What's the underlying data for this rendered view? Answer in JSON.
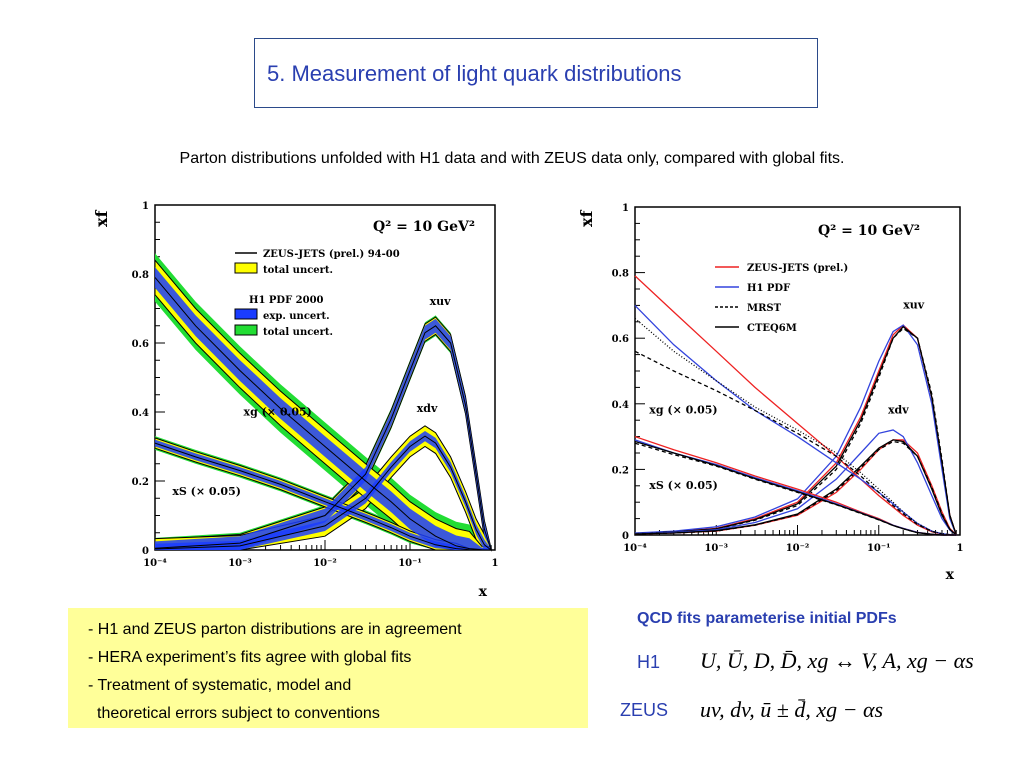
{
  "slide": {
    "title": "5. Measurement of light quark distributions",
    "subtitle": "Parton distributions unfolded with H1 data and with ZEUS data only, compared with global fits."
  },
  "notes": [
    "- H1 and ZEUS parton distributions are in agreement",
    "- HERA experiment’s fits agree with global fits",
    "- Treatment of systematic, model and",
    "  theoretical errors subject to conventions"
  ],
  "qcd": {
    "heading": "QCD fits parameterise initial PDFs",
    "h1_label": "H1",
    "h1_params": "U, Ū, D, D̄, xg ↔ V, A, xg − αs",
    "zeus_label": "ZEUS",
    "zeus_params": "uv, dv, ū ± d̄, xg − αs"
  },
  "chart_data": [
    {
      "type": "line",
      "title": "Q² = 10 GeV²",
      "xlabel": "x",
      "ylabel": "xf",
      "xscale": "log",
      "xlim": [
        0.0001,
        1
      ],
      "ylim": [
        0,
        1
      ],
      "x_ticks": [
        "10⁻⁴",
        "10⁻³",
        "10⁻²",
        "10⁻¹",
        "1"
      ],
      "y_ticks": [
        "0",
        "0.2",
        "0.4",
        "0.6",
        "0.8",
        "1"
      ],
      "legend": {
        "placement": "top-left",
        "entries": [
          {
            "label": "ZEUS-JETS (prel.) 94-00",
            "style": "line",
            "color": "#000000"
          },
          {
            "label": "total uncert.",
            "style": "box",
            "color": "#ffff00"
          },
          {
            "label": "H1 PDF 2000",
            "style": "header",
            "color": "#000000"
          },
          {
            "label": "exp. uncert.",
            "style": "box",
            "color": "#1a3cff"
          },
          {
            "label": "total uncert.",
            "style": "box",
            "color": "#22dd33"
          }
        ]
      },
      "annotations": [
        {
          "text": "xuv",
          "x": 0.17,
          "y": 0.71
        },
        {
          "text": "xdv",
          "x": 0.12,
          "y": 0.4
        },
        {
          "text": "xg (× 0.05)",
          "x": 0.0011,
          "y": 0.39
        },
        {
          "text": "xS (× 0.05)",
          "x": 0.00016,
          "y": 0.16
        }
      ],
      "series": [
        {
          "name": "xuv",
          "x": [
            0.0001,
            0.001,
            0.01,
            0.03,
            0.06,
            0.1,
            0.15,
            0.2,
            0.3,
            0.45,
            0.6,
            0.75,
            0.9
          ],
          "y": [
            0.005,
            0.02,
            0.1,
            0.22,
            0.38,
            0.52,
            0.63,
            0.65,
            0.6,
            0.42,
            0.22,
            0.06,
            0.0
          ],
          "band_h1_exp": 0.02,
          "band_h1_tot": 0.03,
          "band_zeus": 0.025
        },
        {
          "name": "xdv",
          "x": [
            0.0001,
            0.001,
            0.01,
            0.03,
            0.06,
            0.1,
            0.15,
            0.2,
            0.3,
            0.45,
            0.6,
            0.75,
            0.9
          ],
          "y": [
            0.003,
            0.012,
            0.07,
            0.15,
            0.24,
            0.3,
            0.33,
            0.31,
            0.24,
            0.14,
            0.06,
            0.015,
            0.0
          ],
          "band_h1_exp": 0.015,
          "band_h1_tot": 0.025,
          "band_zeus": 0.03
        },
        {
          "name": "xg (× 0.05)",
          "x": [
            0.0001,
            0.0003,
            0.001,
            0.003,
            0.01,
            0.03,
            0.06,
            0.1,
            0.2,
            0.35,
            0.5,
            0.7,
            0.9
          ],
          "y": [
            0.79,
            0.65,
            0.52,
            0.41,
            0.3,
            0.2,
            0.14,
            0.09,
            0.04,
            0.012,
            0.004,
            0.001,
            0.0
          ],
          "band_h1_exp": 0.03,
          "band_h1_tot": 0.07,
          "band_zeus": 0.05
        },
        {
          "name": "xS (× 0.05)",
          "x": [
            0.0001,
            0.0003,
            0.001,
            0.003,
            0.01,
            0.03,
            0.06,
            0.1,
            0.2,
            0.35,
            0.5,
            0.7,
            0.9
          ],
          "y": [
            0.31,
            0.27,
            0.23,
            0.19,
            0.14,
            0.095,
            0.065,
            0.04,
            0.015,
            0.004,
            0.001,
            0.0,
            0.0
          ],
          "band_h1_exp": 0.01,
          "band_h1_tot": 0.02,
          "band_zeus": 0.015
        }
      ]
    },
    {
      "type": "line",
      "title": "Q² = 10 GeV²",
      "xlabel": "x",
      "ylabel": "xf",
      "xscale": "log",
      "xlim": [
        0.0001,
        1
      ],
      "ylim": [
        0,
        1
      ],
      "x_ticks": [
        "10⁻⁴",
        "10⁻³",
        "10⁻²",
        "10⁻¹",
        "1"
      ],
      "y_ticks": [
        "0",
        "0.2",
        "0.4",
        "0.6",
        "0.8",
        "1"
      ],
      "legend": {
        "placement": "top-left",
        "entries": [
          {
            "label": "ZEUS-JETS (prel.)",
            "style": "solid",
            "color": "#ee2222"
          },
          {
            "label": "H1 PDF",
            "style": "solid",
            "color": "#3344dd"
          },
          {
            "label": "MRST",
            "style": "dashed",
            "color": "#000000"
          },
          {
            "label": "CTEQ6M",
            "style": "solid",
            "color": "#000000"
          }
        ]
      },
      "annotations": [
        {
          "text": "xuv",
          "x": 0.2,
          "y": 0.69
        },
        {
          "text": "xdv",
          "x": 0.13,
          "y": 0.37
        },
        {
          "text": "xg (× 0.05)",
          "x": 0.00015,
          "y": 0.37
        },
        {
          "text": "xS (× 0.05)",
          "x": 0.00015,
          "y": 0.14
        }
      ],
      "x": [
        0.0001,
        0.0003,
        0.001,
        0.003,
        0.01,
        0.03,
        0.06,
        0.1,
        0.15,
        0.2,
        0.3,
        0.45,
        0.6,
        0.75,
        0.9
      ],
      "series": [
        {
          "name": "ZEUS-JETS xuv",
          "color": "#ee2222",
          "dash": "",
          "y": [
            0.005,
            0.01,
            0.02,
            0.05,
            0.1,
            0.22,
            0.36,
            0.5,
            0.61,
            0.64,
            0.6,
            0.42,
            0.22,
            0.06,
            0.0
          ]
        },
        {
          "name": "H1 xuv",
          "color": "#3344dd",
          "dash": "",
          "y": [
            0.006,
            0.012,
            0.025,
            0.055,
            0.11,
            0.24,
            0.39,
            0.53,
            0.62,
            0.64,
            0.58,
            0.4,
            0.2,
            0.05,
            0.0
          ]
        },
        {
          "name": "MRST xuv",
          "color": "#000000",
          "dash": "4,3",
          "y": [
            0.004,
            0.009,
            0.018,
            0.045,
            0.09,
            0.2,
            0.34,
            0.48,
            0.6,
            0.63,
            0.6,
            0.43,
            0.23,
            0.06,
            0.0
          ]
        },
        {
          "name": "CTEQ6M xuv",
          "color": "#000000",
          "dash": "",
          "y": [
            0.004,
            0.009,
            0.019,
            0.047,
            0.095,
            0.21,
            0.35,
            0.49,
            0.6,
            0.635,
            0.6,
            0.42,
            0.22,
            0.06,
            0.0
          ]
        },
        {
          "name": "ZEUS-JETS xdv",
          "color": "#ee2222",
          "dash": "",
          "y": [
            0.003,
            0.006,
            0.012,
            0.03,
            0.06,
            0.13,
            0.2,
            0.26,
            0.29,
            0.29,
            0.25,
            0.15,
            0.07,
            0.02,
            0.0
          ]
        },
        {
          "name": "H1 xdv",
          "color": "#3344dd",
          "dash": "",
          "y": [
            0.004,
            0.008,
            0.016,
            0.038,
            0.08,
            0.17,
            0.25,
            0.31,
            0.32,
            0.3,
            0.22,
            0.12,
            0.05,
            0.015,
            0.0
          ]
        },
        {
          "name": "MRST xdv",
          "color": "#000000",
          "dash": "4,3",
          "y": [
            0.003,
            0.006,
            0.012,
            0.03,
            0.062,
            0.135,
            0.205,
            0.26,
            0.285,
            0.28,
            0.24,
            0.145,
            0.065,
            0.018,
            0.0
          ]
        },
        {
          "name": "CTEQ6M xdv",
          "color": "#000000",
          "dash": "",
          "y": [
            0.003,
            0.006,
            0.013,
            0.031,
            0.064,
            0.14,
            0.21,
            0.265,
            0.29,
            0.285,
            0.24,
            0.14,
            0.06,
            0.017,
            0.0
          ]
        },
        {
          "name": "ZEUS-JETS xg",
          "color": "#ee2222",
          "dash": "",
          "y": [
            0.79,
            0.68,
            0.56,
            0.45,
            0.34,
            0.24,
            0.17,
            0.12,
            0.085,
            0.06,
            0.03,
            0.01,
            0.003,
            0.001,
            0.0
          ]
        },
        {
          "name": "H1 xg",
          "color": "#3344dd",
          "dash": "",
          "y": [
            0.7,
            0.58,
            0.47,
            0.38,
            0.3,
            0.22,
            0.17,
            0.13,
            0.095,
            0.07,
            0.035,
            0.012,
            0.004,
            0.001,
            0.0
          ]
        },
        {
          "name": "MRST xg",
          "color": "#000000",
          "dash": "4,3",
          "y": [
            0.56,
            0.5,
            0.44,
            0.38,
            0.31,
            0.24,
            0.18,
            0.13,
            0.09,
            0.065,
            0.032,
            0.011,
            0.003,
            0.001,
            0.0
          ]
        },
        {
          "name": "CTEQ6M xg",
          "color": "#000000",
          "dash": "1,2",
          "y": [
            0.66,
            0.56,
            0.47,
            0.39,
            0.32,
            0.25,
            0.19,
            0.14,
            0.1,
            0.07,
            0.035,
            0.012,
            0.004,
            0.001,
            0.0
          ]
        },
        {
          "name": "ZEUS-JETS xS",
          "color": "#ee2222",
          "dash": "",
          "y": [
            0.3,
            0.26,
            0.22,
            0.18,
            0.14,
            0.1,
            0.07,
            0.05,
            0.03,
            0.02,
            0.008,
            0.002,
            0.0,
            0.0,
            0.0
          ]
        },
        {
          "name": "H1 xS",
          "color": "#3344dd",
          "dash": "",
          "y": [
            0.29,
            0.25,
            0.215,
            0.175,
            0.135,
            0.095,
            0.068,
            0.048,
            0.03,
            0.02,
            0.008,
            0.002,
            0.0,
            0.0,
            0.0
          ]
        },
        {
          "name": "MRST xS",
          "color": "#000000",
          "dash": "4,3",
          "y": [
            0.28,
            0.245,
            0.21,
            0.17,
            0.13,
            0.092,
            0.066,
            0.046,
            0.029,
            0.019,
            0.007,
            0.002,
            0.0,
            0.0,
            0.0
          ]
        },
        {
          "name": "CTEQ6M xS",
          "color": "#000000",
          "dash": "",
          "y": [
            0.285,
            0.25,
            0.212,
            0.172,
            0.132,
            0.093,
            0.067,
            0.047,
            0.029,
            0.019,
            0.007,
            0.002,
            0.0,
            0.0,
            0.0
          ]
        }
      ]
    }
  ]
}
